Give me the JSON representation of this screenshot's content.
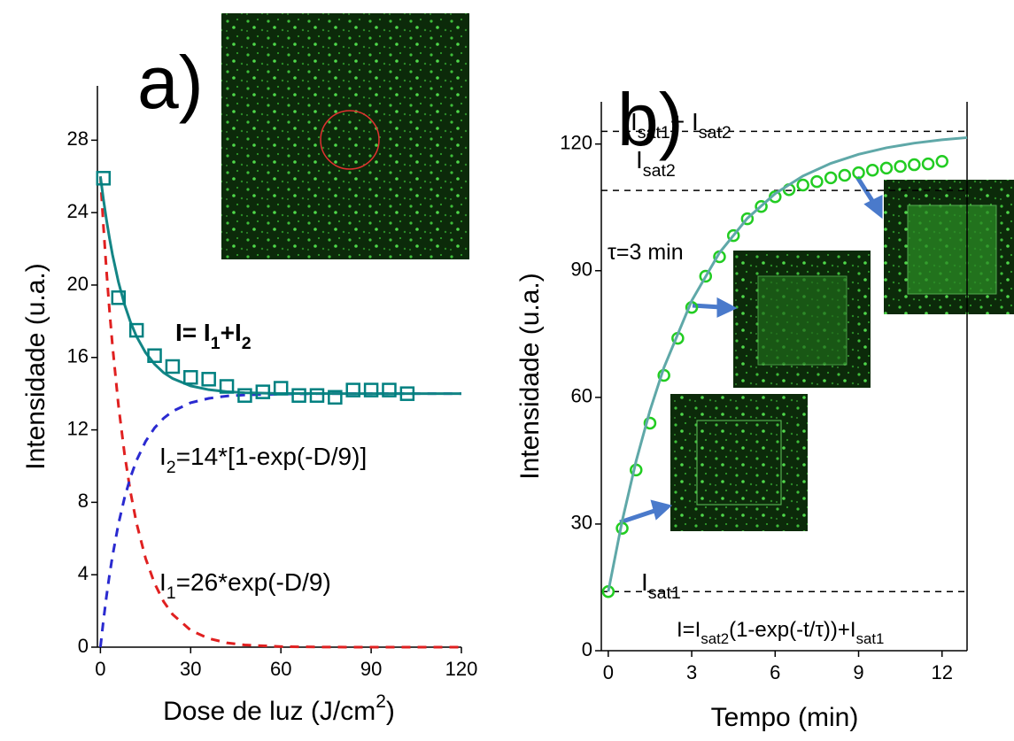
{
  "chart_data": [
    {
      "type": "line",
      "ylabel": "Intensidade (u.a.)",
      "xlabel": [
        "Dose de luz (J/cm",
        "2",
        ")"
      ],
      "xlim": [
        -1,
        120
      ],
      "ylim": [
        0,
        31
      ],
      "xticks": [
        0,
        30,
        60,
        90,
        120
      ],
      "yticks": [
        0,
        4,
        8,
        12,
        16,
        20,
        24,
        28
      ],
      "annotations": [
        {
          "parts": [
            "a)"
          ],
          "color": "#000000"
        },
        {
          "parts": [
            "I= I",
            "1",
            "+I",
            "2"
          ],
          "color": "#0f8080"
        },
        {
          "parts": [
            "I",
            "2",
            "=14*[1-exp(-D/9)]"
          ],
          "color": "#2a2ad0"
        },
        {
          "parts": [
            "I",
            "1",
            "=26*exp(-D/9)"
          ],
          "color": "#e02020"
        }
      ],
      "series": [
        {
          "color": "#e02020",
          "dash": true,
          "marker": "none",
          "x": [
            0,
            1,
            2,
            3,
            4,
            6,
            8,
            10,
            12,
            15,
            18,
            21,
            24,
            30,
            36,
            42,
            48,
            60,
            72,
            84,
            96,
            108,
            120
          ],
          "values": [
            26,
            23.26,
            20.82,
            18.63,
            16.67,
            13.35,
            10.69,
            8.56,
            6.85,
            4.91,
            3.52,
            2.52,
            1.81,
            0.93,
            0.48,
            0.24,
            0.12,
            0.03,
            0.01,
            0,
            0,
            0,
            0
          ]
        },
        {
          "color": "#2a2ad0",
          "dash": true,
          "marker": "none",
          "x": [
            0,
            1,
            2,
            3,
            4,
            6,
            8,
            10,
            12,
            15,
            18,
            21,
            24,
            30,
            36,
            42,
            48,
            60,
            72,
            84,
            96,
            108,
            120
          ],
          "values": [
            0,
            1.47,
            2.79,
            3.97,
            5.02,
            6.81,
            8.24,
            9.39,
            10.31,
            11.36,
            12.11,
            12.64,
            13.03,
            13.5,
            13.74,
            13.87,
            13.93,
            13.98,
            14,
            14,
            14,
            14,
            14
          ]
        },
        {
          "color": "#138585",
          "dash": false,
          "marker": "none",
          "x": [
            0,
            1,
            2,
            3,
            4,
            6,
            8,
            10,
            12,
            15,
            18,
            21,
            24,
            30,
            36,
            42,
            48,
            60,
            72,
            84,
            96,
            108,
            120
          ],
          "values": [
            26,
            24.73,
            23.61,
            22.6,
            21.69,
            20.16,
            18.93,
            17.95,
            17.16,
            16.27,
            15.63,
            15.16,
            14.84,
            14.43,
            14.22,
            14.11,
            14.05,
            14.01,
            14.01,
            14,
            14,
            14,
            14
          ]
        },
        {
          "color": "#008080",
          "dash": false,
          "marker": "square",
          "x": [
            1,
            6,
            12,
            18,
            24,
            30,
            36,
            42,
            48,
            54,
            60,
            66,
            72,
            78,
            84,
            90,
            96,
            102
          ],
          "values": [
            25.9,
            19.3,
            17.5,
            16.1,
            15.5,
            14.9,
            14.8,
            14.4,
            13.9,
            14.1,
            14.3,
            13.9,
            13.9,
            13.8,
            14.2,
            14.2,
            14.2,
            14.0
          ]
        }
      ]
    },
    {
      "type": "line",
      "ylabel": "Intensidade (u.a.)",
      "xlabel": [
        "Tempo (min)"
      ],
      "xlim": [
        -0.25,
        12.9
      ],
      "ylim": [
        0,
        130
      ],
      "xticks": [
        0,
        3,
        6,
        9,
        12
      ],
      "yticks": [
        0,
        30,
        60,
        90,
        120
      ],
      "hlines": [
        123,
        109,
        14
      ],
      "annotations": [
        {
          "parts": [
            "b)"
          ],
          "color": "#000000"
        },
        {
          "parts": [
            "I",
            "sat1",
            "+ I",
            "sat2"
          ],
          "color": "#000000"
        },
        {
          "parts": [
            "I",
            "sat2"
          ],
          "color": "#000000"
        },
        {
          "parts": [
            "I",
            "sat1"
          ],
          "color": "#000000"
        },
        {
          "parts": [
            "τ=3 min"
          ],
          "color": "#1a9a9a"
        },
        {
          "parts": [
            "I=I",
            "sat2",
            "(1-exp(-t/τ))+I",
            "sat1"
          ],
          "color": "#1a9a9a"
        }
      ],
      "series": [
        {
          "color": "#22cc22",
          "dash": false,
          "marker": "circle",
          "x": [
            0,
            0.5,
            1,
            1.5,
            2,
            2.5,
            3,
            3.5,
            4,
            4.5,
            5,
            5.5,
            6,
            6.5,
            7,
            7.5,
            8,
            8.5,
            9,
            9.5,
            10,
            10.5,
            11,
            11.5,
            12
          ],
          "values": [
            14,
            29,
            42.8,
            53.9,
            65.2,
            74,
            81.3,
            88.7,
            93.3,
            98.3,
            102.3,
            105.2,
            107.5,
            109.2,
            110.3,
            111.1,
            112,
            112.6,
            113.2,
            113.8,
            114.3,
            114.7,
            115.1,
            115.3,
            115.9
          ]
        },
        {
          "color": "#5fa8a8",
          "dash": false,
          "marker": "none",
          "x": [
            0,
            0.5,
            1,
            1.5,
            2,
            3,
            4,
            5,
            6,
            7,
            8,
            9,
            10,
            11,
            12,
            12.9
          ],
          "values": [
            14,
            30.73,
            44.9,
            56.89,
            67.04,
            82.9,
            94.27,
            102.41,
            108.25,
            112.43,
            115.42,
            117.57,
            119.11,
            120.21,
            121,
            121.52
          ]
        }
      ]
    }
  ]
}
